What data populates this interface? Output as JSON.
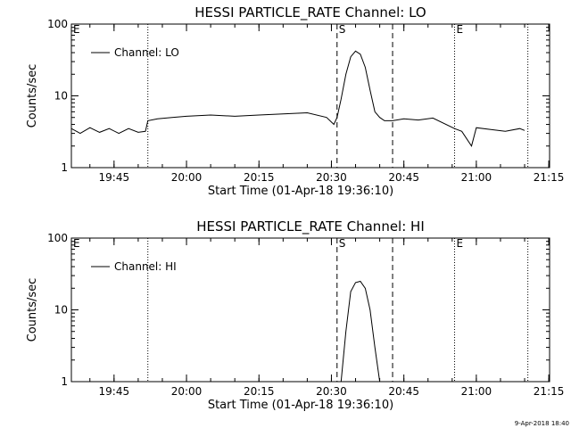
{
  "timestamp": "9-Apr-2018 18:40",
  "chart_data": [
    {
      "type": "line",
      "title": "HESSI PARTICLE_RATE Channel: LO",
      "xlabel": "Start Time (01-Apr-18 19:36:10)",
      "ylabel": "Counts/sec",
      "yscale": "log",
      "ylim": [
        1,
        100
      ],
      "xlim_minutes_since_start": [
        0,
        99
      ],
      "x_tick_labels": [
        "19:45",
        "20:00",
        "20:15",
        "20:30",
        "20:45",
        "21:00",
        "21:15"
      ],
      "y_tick_labels": [
        "1",
        "10",
        "100"
      ],
      "legend": "Channel: LO",
      "markers": [
        {
          "label": "E",
          "time": "19:36:10",
          "style": "none"
        },
        {
          "label": "",
          "time": "19:52:00",
          "style": "dotted"
        },
        {
          "label": "S",
          "time": "20:31:10",
          "style": "dashed"
        },
        {
          "label": "",
          "time": "20:42:40",
          "style": "dashed"
        },
        {
          "label": "E",
          "time": "20:55:30",
          "style": "dotted"
        },
        {
          "label": "",
          "time": "21:10:40",
          "style": "dotted"
        }
      ],
      "series": [
        {
          "name": "Channel: LO",
          "times": [
            "19:36:10",
            "19:38:00",
            "19:40:00",
            "19:42:00",
            "19:44:00",
            "19:46:00",
            "19:48:00",
            "19:50:00",
            "19:51:30",
            "19:52:00",
            "19:54:00",
            "19:57:00",
            "20:00:00",
            "20:05:00",
            "20:10:00",
            "20:15:00",
            "20:20:00",
            "20:25:00",
            "20:29:00",
            "20:30:30",
            "20:31:10",
            "20:32:00",
            "20:33:00",
            "20:34:00",
            "20:35:00",
            "20:36:00",
            "20:37:00",
            "20:38:00",
            "20:39:00",
            "20:40:00",
            "20:41:00",
            "20:42:40",
            "20:45:00",
            "20:48:00",
            "20:51:00",
            "20:55:30",
            "20:57:00",
            "20:59:00",
            "21:00:00",
            "21:03:00",
            "21:06:00",
            "21:09:00",
            "21:10:00"
          ],
          "values": [
            3.5,
            3.0,
            3.6,
            3.1,
            3.5,
            3.0,
            3.5,
            3.1,
            3.2,
            4.5,
            4.8,
            5.0,
            5.2,
            5.4,
            5.2,
            5.4,
            5.6,
            5.8,
            5.0,
            4.0,
            5.0,
            9.0,
            20,
            35,
            42,
            38,
            25,
            12,
            6,
            5,
            4.5,
            4.5,
            4.8,
            4.6,
            4.9,
            3.5,
            3.2,
            2.0,
            3.6,
            3.4,
            3.2,
            3.5,
            3.3
          ]
        }
      ]
    },
    {
      "type": "line",
      "title": "HESSI PARTICLE_RATE Channel: HI",
      "xlabel": "Start Time (01-Apr-18 19:36:10)",
      "ylabel": "Counts/sec",
      "yscale": "log",
      "ylim": [
        1,
        100
      ],
      "xlim_minutes_since_start": [
        0,
        99
      ],
      "x_tick_labels": [
        "19:45",
        "20:00",
        "20:15",
        "20:30",
        "20:45",
        "21:00",
        "21:15"
      ],
      "y_tick_labels": [
        "1",
        "10",
        "100"
      ],
      "legend": "Channel: HI",
      "markers": [
        {
          "label": "E",
          "time": "19:36:10",
          "style": "none"
        },
        {
          "label": "",
          "time": "19:52:00",
          "style": "dotted"
        },
        {
          "label": "S",
          "time": "20:31:10",
          "style": "dashed"
        },
        {
          "label": "",
          "time": "20:42:40",
          "style": "dashed"
        },
        {
          "label": "E",
          "time": "20:55:30",
          "style": "dotted"
        },
        {
          "label": "",
          "time": "21:10:40",
          "style": "dotted"
        }
      ],
      "series": [
        {
          "name": "Channel: HI",
          "times": [
            "20:32:00",
            "20:33:00",
            "20:34:00",
            "20:35:00",
            "20:36:00",
            "20:37:00",
            "20:38:00",
            "20:39:00",
            "20:40:00"
          ],
          "values": [
            1.0,
            5.0,
            18,
            24,
            25,
            20,
            10,
            3.0,
            1.0
          ]
        }
      ]
    }
  ]
}
